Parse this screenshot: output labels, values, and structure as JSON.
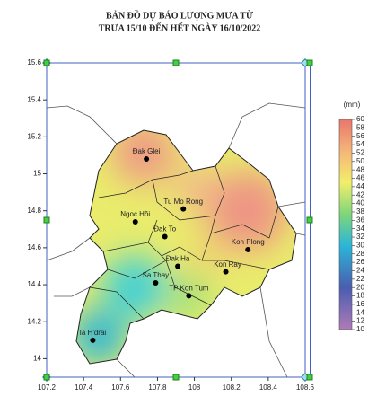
{
  "title": [
    "BẢN ĐỒ DỰ BÁO LƯỢNG MƯA TỪ",
    "TRƯA 15/10 ĐẾN HẾT NGÀY 16/10/2022"
  ],
  "map": {
    "xlim": [
      107.2,
      108.6
    ],
    "ylim": [
      13.9,
      15.6
    ],
    "xticks": [
      107.2,
      107.4,
      107.6,
      107.8,
      108,
      108.2,
      108.4,
      108.6
    ],
    "yticks": [
      14,
      14.2,
      14.4,
      14.6,
      14.8,
      15,
      15.2,
      15.4,
      15.6
    ],
    "places": [
      {
        "name": "Đak Glei",
        "lon": 107.74,
        "lat": 15.08
      },
      {
        "name": "Tu Mo Rong",
        "lon": 107.94,
        "lat": 14.81
      },
      {
        "name": "Ngoc Hồi",
        "lon": 107.68,
        "lat": 14.74
      },
      {
        "name": "Đak To",
        "lon": 107.84,
        "lat": 14.66
      },
      {
        "name": "Kon Plong",
        "lon": 108.29,
        "lat": 14.59
      },
      {
        "name": "Đak Ha",
        "lon": 107.91,
        "lat": 14.5
      },
      {
        "name": "Kon Ray",
        "lon": 108.17,
        "lat": 14.47
      },
      {
        "name": "Sa Thay",
        "lon": 107.79,
        "lat": 14.41
      },
      {
        "name": "TP Kon Tum",
        "lon": 107.97,
        "lat": 14.34
      },
      {
        "name": "Ia H'drai",
        "lon": 107.45,
        "lat": 14.1
      }
    ]
  },
  "colorbar": {
    "unit": "(mm)",
    "lim": [
      10,
      60
    ],
    "ticks": [
      10,
      12,
      14,
      16,
      18,
      20,
      22,
      24,
      26,
      28,
      30,
      32,
      34,
      36,
      38,
      40,
      42,
      44,
      46,
      48,
      50,
      52,
      54,
      56,
      58,
      60
    ]
  }
}
